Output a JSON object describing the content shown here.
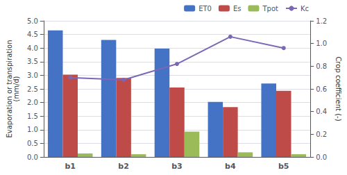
{
  "chart_data": {
    "type": "bar",
    "categories": [
      "b1",
      "b2",
      "b3",
      "b4",
      "b5"
    ],
    "series": [
      {
        "name": "ET0",
        "color": "#4472C4",
        "values": [
          4.65,
          4.3,
          3.98,
          2.02,
          2.7
        ]
      },
      {
        "name": "Es",
        "color": "#BE4B48",
        "values": [
          3.02,
          2.9,
          2.55,
          1.83,
          2.43
        ]
      },
      {
        "name": "Tpot",
        "color": "#9BBB59",
        "values": [
          0.13,
          0.1,
          0.93,
          0.17,
          0.1
        ]
      },
      {
        "name": "Kc",
        "type": "line",
        "marker": "circle",
        "axis": "y2",
        "color": "#7B68B5",
        "values": [
          0.7,
          0.68,
          0.82,
          1.06,
          0.96
        ]
      }
    ],
    "ylabel": "Evaporation or transpiration\n(mm/d)",
    "y2label": "Crop coefficient (-)",
    "ylim": [
      0,
      5
    ],
    "yticks": [
      {
        "value": 0,
        "label": "0.0"
      },
      0.5,
      {
        "value": 1,
        "label": "1.0"
      },
      1.5,
      {
        "value": 2,
        "label": "2.0"
      },
      2.5,
      {
        "value": 3,
        "label": "3.0"
      },
      3.5,
      {
        "value": 4,
        "label": "4.0"
      },
      4.5,
      {
        "value": 5,
        "label": "5.0"
      }
    ],
    "y2lim": [
      0,
      1.2
    ],
    "y2ticks": [
      {
        "value": 0,
        "label": "0.0"
      },
      0.2,
      0.4,
      0.6,
      0.8,
      {
        "value": 1,
        "label": "1.0"
      },
      1.2
    ],
    "grid": true,
    "legend": "upper right"
  }
}
